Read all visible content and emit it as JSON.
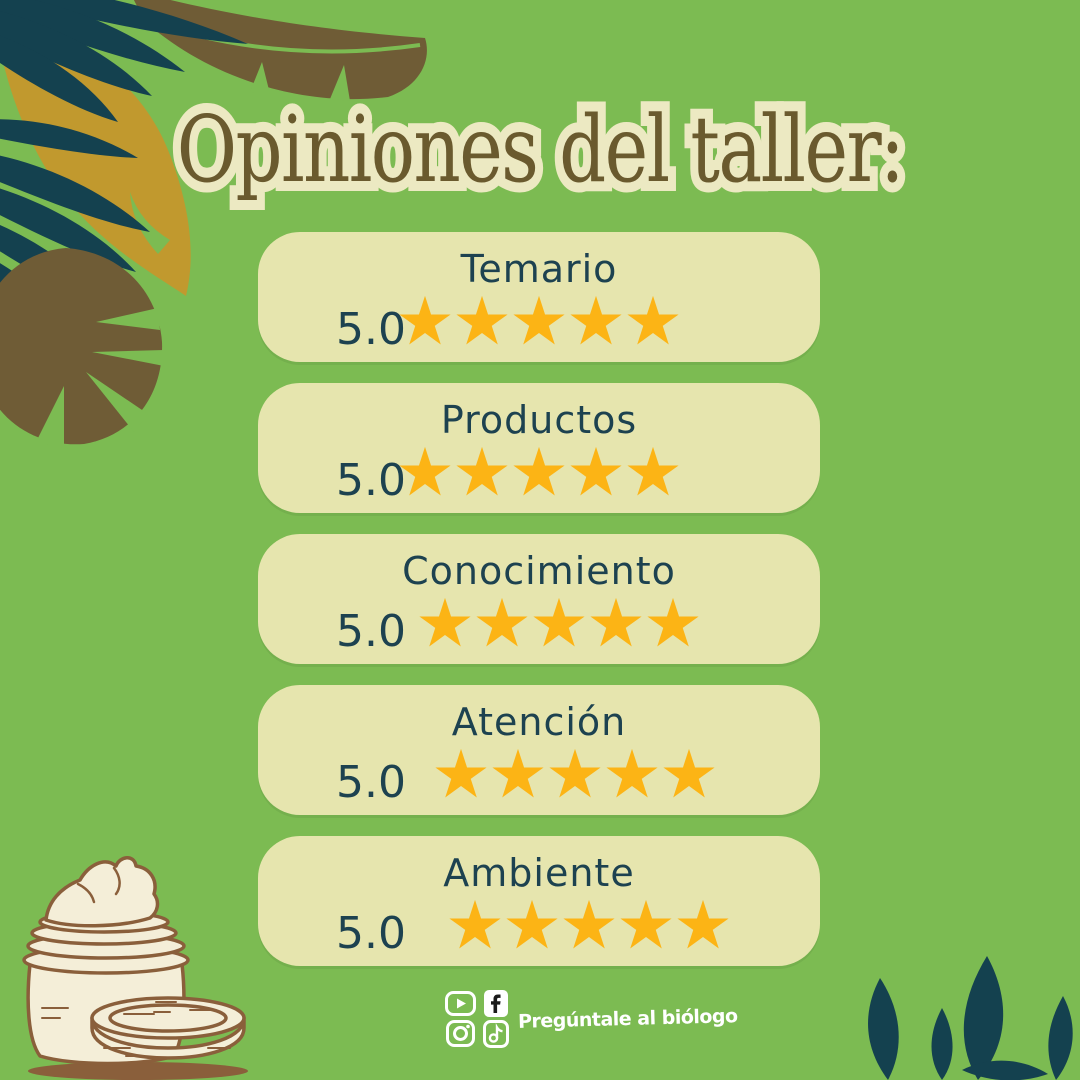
{
  "title": {
    "text": "Opiniones del taller:"
  },
  "ratings": {
    "items": [
      {
        "label": "Temario",
        "score": "5.0",
        "stars": 5,
        "max_stars": 5
      },
      {
        "label": "Productos",
        "score": "5.0",
        "stars": 5,
        "max_stars": 5
      },
      {
        "label": "Conocimiento",
        "score": "5.0",
        "stars": 5,
        "max_stars": 5
      },
      {
        "label": "Atención",
        "score": "5.0",
        "stars": 5,
        "max_stars": 5
      },
      {
        "label": "Ambiente",
        "score": "5.0",
        "stars": 5,
        "max_stars": 5
      }
    ]
  },
  "footer": {
    "brand": "Pregúntale al biólogo",
    "icons": [
      "youtube-icon",
      "facebook-icon",
      "instagram-icon",
      "tiktok-icon"
    ]
  },
  "decorations": [
    "tropical-leaves-top-left",
    "cream-jar-illustration-bottom-left",
    "leaf-cluster-bottom-right"
  ],
  "colors": {
    "background": "#7cbb52",
    "card_background": "#e6e5ae",
    "title_text": "#6a5a2e",
    "title_outline": "#ece9c2",
    "category_text": "#1d4250",
    "star_gold": "#fcb415",
    "leaf_dark_teal": "#14414f",
    "leaf_brown": "#6f5c36",
    "leaf_gold": "#c1992e",
    "jar_outline": "#8a5f3b",
    "jar_fill": "#f4eed8",
    "footer_text": "#ffffff"
  }
}
